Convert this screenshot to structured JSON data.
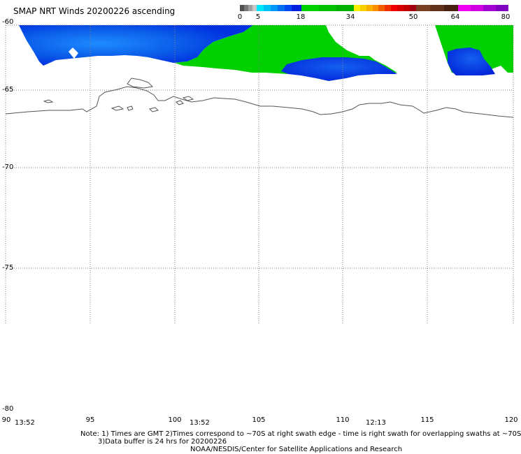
{
  "title": "SMAP NRT Winds 20200226 ascending",
  "colorbar": {
    "ticks": [
      "0",
      "5",
      "18",
      "34",
      "50",
      "64",
      "80"
    ],
    "colors": [
      "#606060",
      "#00c8f8",
      "#0040f0",
      "#00c800",
      "#f8e000",
      "#f00000",
      "#784020",
      "#e000e0",
      "#8000c0"
    ]
  },
  "axes": {
    "lat_labels": [
      "-60",
      "-65",
      "-70",
      "-75",
      "-80"
    ],
    "lon_labels": [
      "90",
      "95",
      "100",
      "105",
      "110",
      "115",
      "120"
    ]
  },
  "times": [
    "13:52",
    "13:52",
    "12:13"
  ],
  "notes": {
    "line1": "Note: 1) Times are GMT 2)Times correspond to ~70S at right swath edge - time is right swath for overlapping swaths at ~70S",
    "line2": "3)Data buffer is 24 hrs for 20200226",
    "line3": "NOAA/NESDIS/Center for Satellite Applications and Research"
  },
  "wind_colors": {
    "blue_dark": "#0030e0",
    "blue_light": "#1e90ff",
    "green": "#00d000",
    "coast": "#555555",
    "grid": "#808080"
  }
}
